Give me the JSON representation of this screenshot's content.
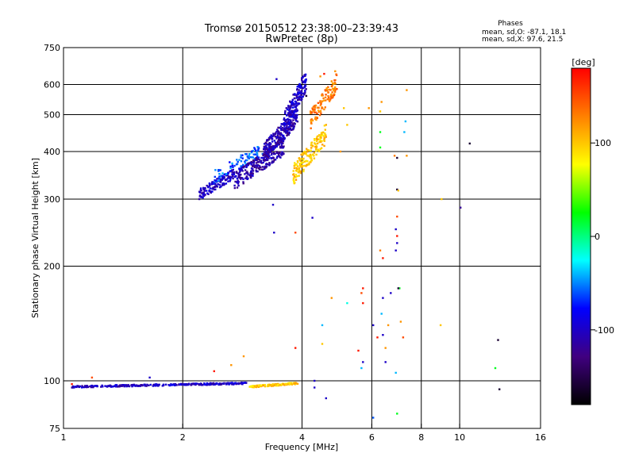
{
  "chart_data": {
    "type": "scatter",
    "title": "Tromsø 20150512 23:38:00–23:39:43",
    "subtitle": "RwPretec (8p)",
    "xlabel": "Frequency [MHz]",
    "ylabel": "Stationary phase Virtual Height [km]",
    "xscale": "log",
    "yscale": "log",
    "xlim": [
      1,
      16
    ],
    "ylim": [
      75,
      750
    ],
    "x_ticks": [
      1,
      2,
      4,
      6,
      8,
      10,
      16
    ],
    "x_grid": [
      2,
      4,
      6,
      8,
      10
    ],
    "y_ticks": [
      75,
      100,
      200,
      300,
      400,
      500,
      600,
      750
    ],
    "y_grid": [
      100,
      200,
      300,
      400,
      500,
      600
    ],
    "grid": true,
    "stats": {
      "title": "Phases",
      "line_o": "mean, sd,O: -87.1, 18.1",
      "line_x": "mean, sd,X:  97.6, 21.5"
    },
    "colorbar": {
      "label": "[deg]",
      "range": [
        -180,
        180
      ],
      "ticks": [
        100,
        0,
        -100
      ],
      "colors": [
        "#ff0000",
        "#ff8000",
        "#ffff00",
        "#00ff00",
        "#00ffff",
        "#0000ff",
        "#400080",
        "#000000"
      ]
    },
    "series": [
      {
        "clusters": [
          {
            "x": [
              1.05,
              2.9
            ],
            "y": [
              96,
              99
            ],
            "phase": -100,
            "n": 320
          },
          {
            "x": [
              2.95,
              3.9
            ],
            "y": [
              96,
              99
            ],
            "phase": 100,
            "n": 140
          },
          {
            "x": [
              2.2,
              2.7
            ],
            "y": [
              300,
              360
            ],
            "phase": -100,
            "n": 140
          },
          {
            "x": [
              2.4,
              3.2
            ],
            "y": [
              330,
              420
            ],
            "phase": -60,
            "n": 90
          },
          {
            "x": [
              2.7,
              3.6
            ],
            "y": [
              320,
              430
            ],
            "phase": -110,
            "n": 260
          },
          {
            "x": [
              3.2,
              3.9
            ],
            "y": [
              380,
              520
            ],
            "phase": -110,
            "n": 240
          },
          {
            "x": [
              3.6,
              4.1
            ],
            "y": [
              450,
              650
            ],
            "phase": -100,
            "n": 180
          },
          {
            "x": [
              3.8,
              4.6
            ],
            "y": [
              330,
              470
            ],
            "phase": 100,
            "n": 160
          },
          {
            "x": [
              4.2,
              4.9
            ],
            "y": [
              460,
              640
            ],
            "phase": 130,
            "n": 110
          }
        ],
        "points": [
          {
            "x": 1.05,
            "y": 98,
            "phase": 170
          },
          {
            "x": 1.18,
            "y": 102,
            "phase": 150
          },
          {
            "x": 1.65,
            "y": 102,
            "phase": -100
          },
          {
            "x": 2.4,
            "y": 106,
            "phase": 170
          },
          {
            "x": 2.65,
            "y": 110,
            "phase": 120
          },
          {
            "x": 2.85,
            "y": 116,
            "phase": 120
          },
          {
            "x": 3.4,
            "y": 245,
            "phase": -100
          },
          {
            "x": 3.85,
            "y": 245,
            "phase": 150
          },
          {
            "x": 3.85,
            "y": 122,
            "phase": 170
          },
          {
            "x": 3.38,
            "y": 290,
            "phase": -100
          },
          {
            "x": 4.25,
            "y": 268,
            "phase": -100
          },
          {
            "x": 4.3,
            "y": 100,
            "phase": -100
          },
          {
            "x": 4.3,
            "y": 96,
            "phase": -100
          },
          {
            "x": 4.6,
            "y": 90,
            "phase": -100
          },
          {
            "x": 4.75,
            "y": 165,
            "phase": 120
          },
          {
            "x": 4.5,
            "y": 140,
            "phase": -40
          },
          {
            "x": 4.5,
            "y": 125,
            "phase": 100
          },
          {
            "x": 5.2,
            "y": 160,
            "phase": -20
          },
          {
            "x": 5.65,
            "y": 170,
            "phase": 150
          },
          {
            "x": 5.7,
            "y": 175,
            "phase": 170
          },
          {
            "x": 5.7,
            "y": 160,
            "phase": 170
          },
          {
            "x": 5.55,
            "y": 120,
            "phase": 170
          },
          {
            "x": 5.7,
            "y": 112,
            "phase": -100
          },
          {
            "x": 5.65,
            "y": 108,
            "phase": -40
          },
          {
            "x": 6.05,
            "y": 140,
            "phase": -100
          },
          {
            "x": 6.05,
            "y": 80,
            "phase": -60
          },
          {
            "x": 6.2,
            "y": 130,
            "phase": 170
          },
          {
            "x": 6.4,
            "y": 132,
            "phase": -100
          },
          {
            "x": 6.35,
            "y": 150,
            "phase": -40
          },
          {
            "x": 6.4,
            "y": 165,
            "phase": -100
          },
          {
            "x": 6.5,
            "y": 122,
            "phase": 120
          },
          {
            "x": 6.6,
            "y": 140,
            "phase": 120
          },
          {
            "x": 6.5,
            "y": 112,
            "phase": -100
          },
          {
            "x": 6.9,
            "y": 105,
            "phase": -40
          },
          {
            "x": 6.95,
            "y": 82,
            "phase": 20
          },
          {
            "x": 7.05,
            "y": 175,
            "phase": 20
          },
          {
            "x": 7.0,
            "y": 175,
            "phase": -160
          },
          {
            "x": 6.7,
            "y": 170,
            "phase": -100
          },
          {
            "x": 6.3,
            "y": 220,
            "phase": 130
          },
          {
            "x": 6.4,
            "y": 210,
            "phase": 170
          },
          {
            "x": 6.95,
            "y": 230,
            "phase": -100
          },
          {
            "x": 6.9,
            "y": 250,
            "phase": -100
          },
          {
            "x": 6.95,
            "y": 270,
            "phase": 150
          },
          {
            "x": 6.95,
            "y": 318,
            "phase": -160
          },
          {
            "x": 7.0,
            "y": 316,
            "phase": 100
          },
          {
            "x": 6.85,
            "y": 390,
            "phase": 130
          },
          {
            "x": 6.95,
            "y": 385,
            "phase": -160
          },
          {
            "x": 6.3,
            "y": 410,
            "phase": 20
          },
          {
            "x": 6.3,
            "y": 450,
            "phase": 20
          },
          {
            "x": 6.35,
            "y": 540,
            "phase": 120
          },
          {
            "x": 6.3,
            "y": 510,
            "phase": 100
          },
          {
            "x": 5.9,
            "y": 520,
            "phase": 120
          },
          {
            "x": 7.3,
            "y": 480,
            "phase": -40
          },
          {
            "x": 7.25,
            "y": 450,
            "phase": -40
          },
          {
            "x": 7.35,
            "y": 390,
            "phase": 120
          },
          {
            "x": 7.35,
            "y": 580,
            "phase": 120
          },
          {
            "x": 6.9,
            "y": 220,
            "phase": -100
          },
          {
            "x": 6.95,
            "y": 240,
            "phase": 170
          },
          {
            "x": 7.2,
            "y": 130,
            "phase": 150
          },
          {
            "x": 7.1,
            "y": 143,
            "phase": 120
          },
          {
            "x": 9.0,
            "y": 300,
            "phase": 100
          },
          {
            "x": 10.05,
            "y": 285,
            "phase": -120
          },
          {
            "x": 8.95,
            "y": 140,
            "phase": 100
          },
          {
            "x": 10.6,
            "y": 420,
            "phase": -160
          },
          {
            "x": 12.5,
            "y": 128,
            "phase": -160
          },
          {
            "x": 12.3,
            "y": 108,
            "phase": 20
          },
          {
            "x": 12.6,
            "y": 95,
            "phase": -160
          },
          {
            "x": 4.55,
            "y": 640,
            "phase": 170
          },
          {
            "x": 4.45,
            "y": 630,
            "phase": 120
          },
          {
            "x": 3.45,
            "y": 620,
            "phase": -100
          },
          {
            "x": 4.85,
            "y": 650,
            "phase": 120
          },
          {
            "x": 5.1,
            "y": 520,
            "phase": 100
          },
          {
            "x": 5.2,
            "y": 470,
            "phase": 100
          },
          {
            "x": 5.0,
            "y": 400,
            "phase": 120
          },
          {
            "x": 4.1,
            "y": 560,
            "phase": -160
          }
        ]
      }
    ]
  }
}
